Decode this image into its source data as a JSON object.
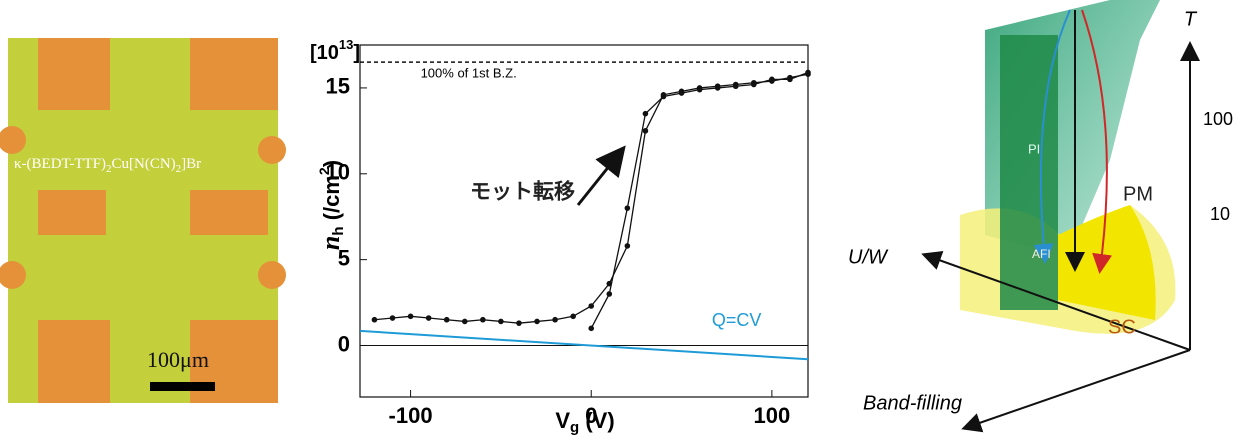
{
  "micrograph": {
    "formula": [
      "κ-(BEDT-TTF)",
      "2",
      "Cu[N(CN)",
      "2",
      "]Br"
    ],
    "scale_bar": "100μm"
  },
  "chart_data": {
    "type": "line",
    "scale_label": [
      "[10",
      "13",
      "]"
    ],
    "y_label": [
      "n",
      "h",
      " (/cm",
      "2",
      ")"
    ],
    "x_label": [
      "V",
      "g",
      " (V)"
    ],
    "annotation": "モット転移",
    "reference_line": {
      "value": 16.5,
      "label": "100% of 1st B.Z."
    },
    "fit_line": {
      "label": "Q=CV",
      "color": "#1e9bd7",
      "x": [
        -128,
        120
      ],
      "values": [
        0.85,
        -0.8
      ]
    },
    "x": [
      -120,
      -110,
      -100,
      -90,
      -80,
      -70,
      -60,
      -50,
      -40,
      -30,
      -20,
      -10,
      0,
      10,
      20,
      30,
      40,
      50,
      60,
      70,
      80,
      90,
      100,
      110,
      120
    ],
    "series": [
      {
        "color": "#111111",
        "values": [
          1.5,
          1.6,
          1.7,
          1.6,
          1.5,
          1.4,
          1.5,
          1.4,
          1.3,
          1.4,
          1.5,
          1.7,
          2.3,
          3.6,
          5.8,
          12.5,
          14.6,
          14.8,
          15.0,
          15.1,
          15.2,
          15.3,
          15.4,
          15.6,
          15.8
        ]
      },
      {
        "color": "#111111",
        "values": [
          null,
          null,
          null,
          null,
          null,
          null,
          null,
          null,
          null,
          null,
          null,
          null,
          1.0,
          3.0,
          8.0,
          13.5,
          14.5,
          14.7,
          14.9,
          15.0,
          15.1,
          15.2,
          15.5,
          15.5,
          15.9
        ]
      }
    ],
    "xlim": [
      -128,
      120
    ],
    "ylim": [
      -3,
      17.5
    ],
    "xticks": [
      -100,
      0,
      100
    ],
    "yticks": [
      0,
      5,
      10,
      15
    ]
  },
  "phase_diagram": {
    "t_axis": "T",
    "t_ticks": [
      "100",
      "10"
    ],
    "u_axis": "U/W",
    "band_axis": "Band-filling",
    "regions": [
      "PI",
      "PM",
      "AFI",
      "SC"
    ]
  }
}
